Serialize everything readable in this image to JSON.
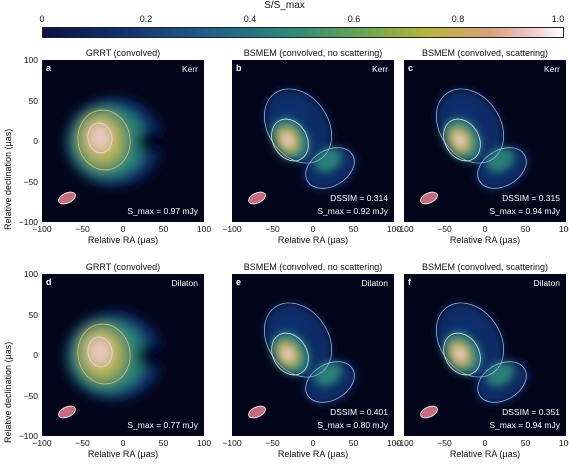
{
  "colorbar": {
    "title": "S/S_max",
    "ticks": [
      "0",
      "0.2",
      "0.4",
      "0.6",
      "0.8",
      "1.0"
    ]
  },
  "rows": [
    {
      "model": "Kerr",
      "panels": [
        {
          "letter": "a",
          "header": "GRRT (convolved)",
          "dssim": "",
          "smax": "S_max = 0.97 mJy"
        },
        {
          "letter": "b",
          "header": "BSMEM (convolved, no scattering)",
          "dssim": "DSSIM = 0.314",
          "smax": "S_max = 0.92 mJy"
        },
        {
          "letter": "c",
          "header": "BSMEM (convolved, scattering)",
          "dssim": "DSSIM = 0.315",
          "smax": "S_max = 0.94 mJy"
        }
      ]
    },
    {
      "model": "Dilaton",
      "panels": [
        {
          "letter": "d",
          "header": "GRRT (convolved)",
          "dssim": "",
          "smax": "S_max = 0.77 mJy"
        },
        {
          "letter": "e",
          "header": "BSMEM (convolved, no scattering)",
          "dssim": "DSSIM = 0.401",
          "smax": "S_max = 0.80 mJy"
        },
        {
          "letter": "f",
          "header": "BSMEM (convolved, scattering)",
          "dssim": "DSSIM = 0.351",
          "smax": "S_max = 0.94 mJy"
        }
      ]
    }
  ],
  "axes": {
    "xlabel": "Relative RA (μas)",
    "ylabel": "Relative declination (μas)",
    "xticks": [
      "−100",
      "−50",
      "0",
      "50",
      "100"
    ],
    "yticks": [
      "100",
      "50",
      "0",
      "−50",
      "−100"
    ]
  },
  "colors": {
    "background": "#03051a",
    "low": "#123070",
    "mid": "#2c8a7a",
    "high": "#b8b43a",
    "peak": "#f0c8c8"
  }
}
